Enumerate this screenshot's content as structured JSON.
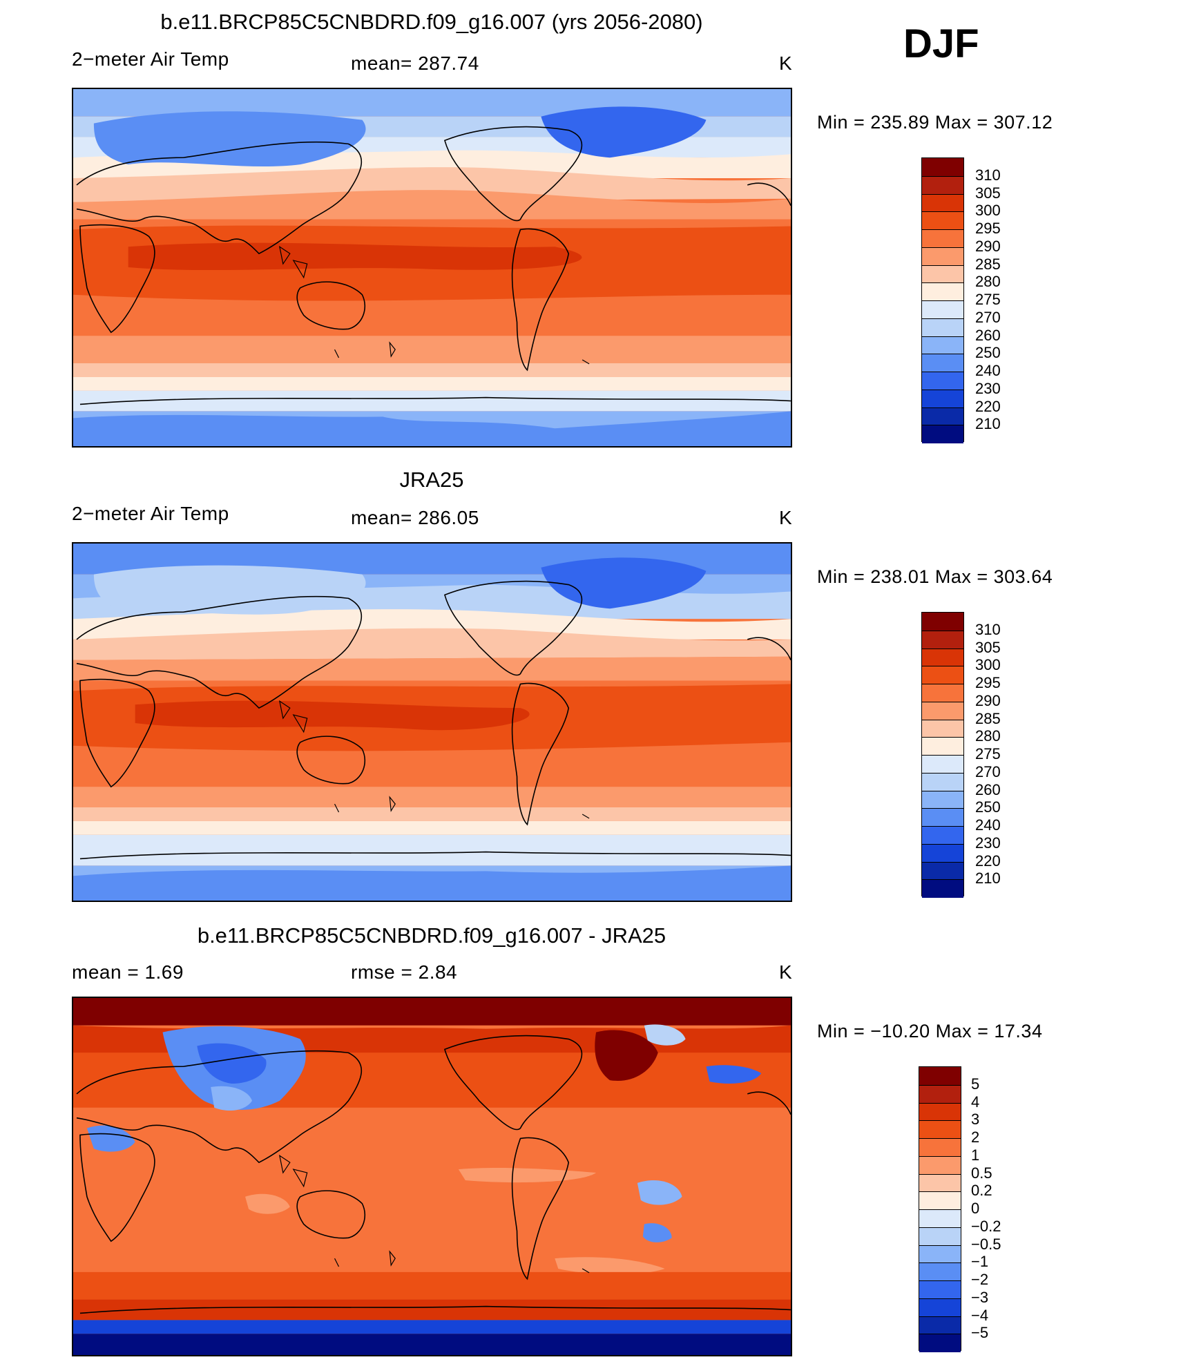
{
  "season": "DJF",
  "panels": [
    {
      "title": "b.e11.BRCP85C5CNBDRD.f09_g16.007 (yrs 2056-2080)",
      "left_label": "2−meter Air Temp",
      "mid_label": "mean=  287.74",
      "unit": "K",
      "minmax": "Min  =  235.89  Max  =  307.12",
      "colorbar": {
        "labels": [
          "310",
          "305",
          "300",
          "295",
          "290",
          "285",
          "280",
          "275",
          "270",
          "260",
          "250",
          "240",
          "230",
          "220",
          "210"
        ],
        "colors": [
          "#7f0000",
          "#b2200e",
          "#d93406",
          "#ec5014",
          "#f7733b",
          "#fb9a6c",
          "#fcc5a8",
          "#feeedf",
          "#dce9fa",
          "#b9d3f7",
          "#8ab4f8",
          "#5a8ef4",
          "#3366ee",
          "#1544d8",
          "#0a2aa8",
          "#000c80"
        ]
      }
    },
    {
      "title": "JRA25",
      "left_label": "2−meter Air Temp",
      "mid_label": "mean=  286.05",
      "unit": "K",
      "minmax": "Min  =  238.01  Max  =  303.64",
      "colorbar": {
        "labels": [
          "310",
          "305",
          "300",
          "295",
          "290",
          "285",
          "280",
          "275",
          "270",
          "260",
          "250",
          "240",
          "230",
          "220",
          "210"
        ],
        "colors": [
          "#7f0000",
          "#b2200e",
          "#d93406",
          "#ec5014",
          "#f7733b",
          "#fb9a6c",
          "#fcc5a8",
          "#feeedf",
          "#dce9fa",
          "#b9d3f7",
          "#8ab4f8",
          "#5a8ef4",
          "#3366ee",
          "#1544d8",
          "#0a2aa8",
          "#000c80"
        ]
      }
    },
    {
      "title": "b.e11.BRCP85C5CNBDRD.f09_g16.007 - JRA25",
      "left_label": "mean  =      1.69",
      "mid_label": "rmse  =      2.84",
      "unit": "K",
      "minmax": "Min  =  −10.20  Max  =    17.34",
      "colorbar": {
        "labels": [
          "5",
          "4",
          "3",
          "2",
          "1",
          "0.5",
          "0.2",
          "0",
          "−0.2",
          "−0.5",
          "−1",
          "−2",
          "−3",
          "−4",
          "−5"
        ],
        "colors": [
          "#7f0000",
          "#b2200e",
          "#d93406",
          "#ec5014",
          "#f7733b",
          "#fb9a6c",
          "#fcc5a8",
          "#feeedf",
          "#dce9fa",
          "#b9d3f7",
          "#8ab4f8",
          "#5a8ef4",
          "#3366ee",
          "#1544d8",
          "#0a2aa8",
          "#000c80"
        ]
      }
    }
  ]
}
